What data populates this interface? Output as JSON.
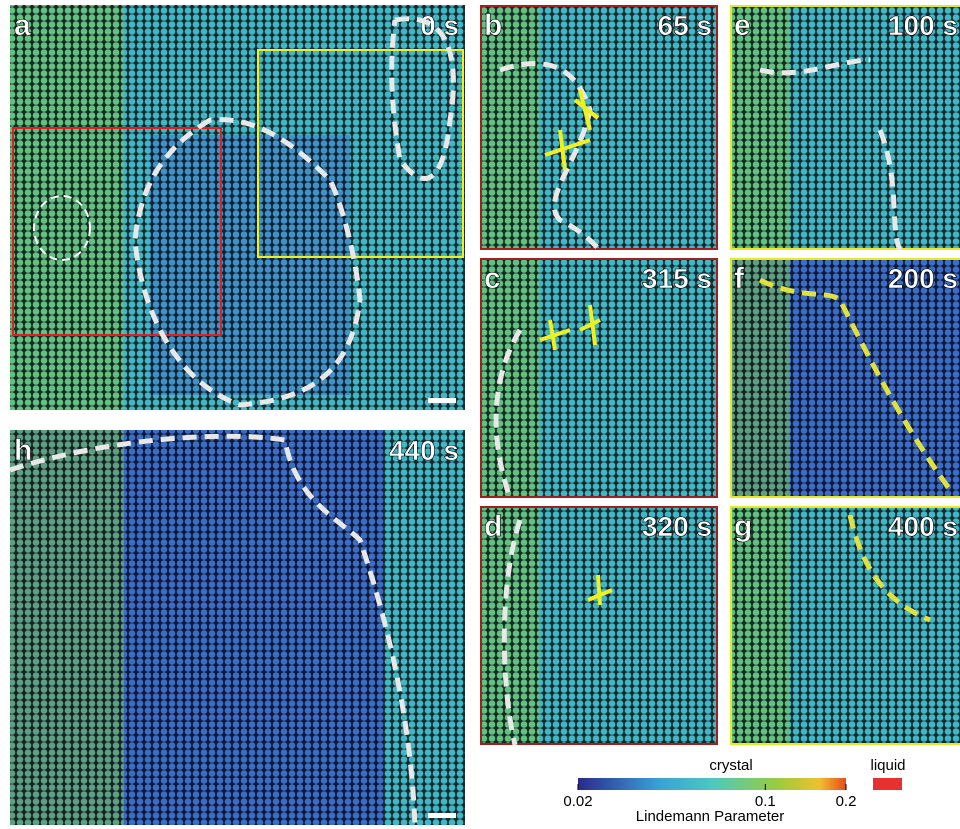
{
  "panels": [
    {
      "label": "a",
      "time": "0 s"
    },
    {
      "label": "b",
      "time": "65 s"
    },
    {
      "label": "c",
      "time": "315 s"
    },
    {
      "label": "d",
      "time": "320 s"
    },
    {
      "label": "e",
      "time": "100 s"
    },
    {
      "label": "f",
      "time": "200 s"
    },
    {
      "label": "g",
      "time": "400 s"
    },
    {
      "label": "h",
      "time": "440 s"
    }
  ],
  "colorbar": {
    "title": "crystal",
    "liquid_label": "liquid",
    "axis_label": "Lindemann Parameter",
    "lim": [
      0.02,
      0.2
    ],
    "ticks": [
      0.02,
      0.1,
      0.2
    ],
    "log_scale": true
  }
}
